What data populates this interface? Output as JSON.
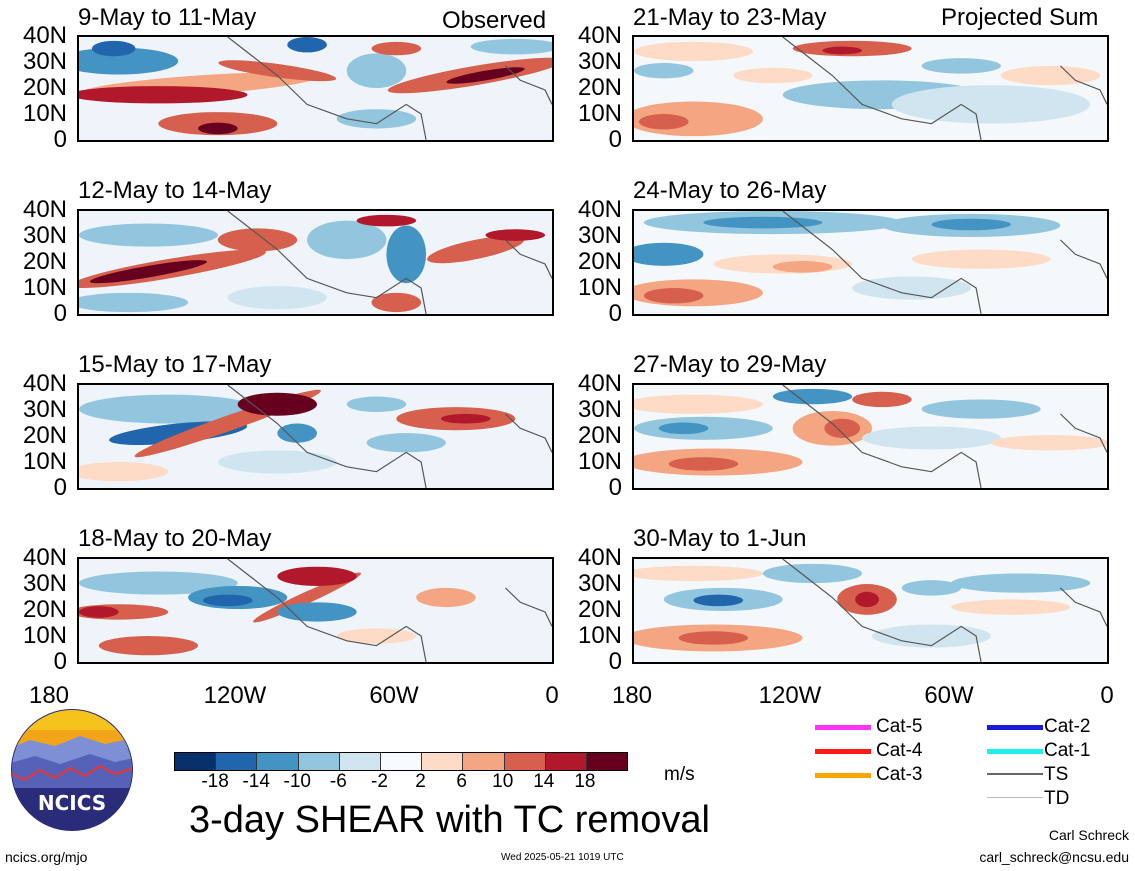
{
  "header": {
    "left_tag": "Observed",
    "right_tag": "Projected Sum"
  },
  "panels_left": [
    {
      "label": "9-May to 11-May"
    },
    {
      "label": "12-May to 14-May"
    },
    {
      "label": "15-May to 17-May"
    },
    {
      "label": "18-May to 20-May"
    }
  ],
  "panels_right": [
    {
      "label": "21-May to 23-May"
    },
    {
      "label": "24-May to 26-May"
    },
    {
      "label": "27-May to 29-May"
    },
    {
      "label": "30-May to 1-Jun"
    }
  ],
  "axes": {
    "y_ticks": [
      "40N",
      "30N",
      "20N",
      "10N",
      "0"
    ],
    "x_ticks": [
      "180",
      "120W",
      "60W",
      "0"
    ]
  },
  "colorbar": {
    "ticks": [
      "-18",
      "-14",
      "-10",
      "-6",
      "-2",
      "2",
      "6",
      "10",
      "14",
      "18"
    ],
    "colors": [
      "#08306b",
      "#2166ac",
      "#4393c3",
      "#92c5de",
      "#d1e5f0",
      "#f7fbff",
      "#fddbc7",
      "#f4a582",
      "#d6604d",
      "#b2182b",
      "#67001f"
    ],
    "unit": "m/s"
  },
  "title": "3-day SHEAR with TC removal",
  "legend": {
    "col1": [
      {
        "label": "Cat-5",
        "color": "#ff33ff"
      },
      {
        "label": "Cat-4",
        "color": "#ff1a1a"
      },
      {
        "label": "Cat-3",
        "color": "#ffa500"
      }
    ],
    "col2": [
      {
        "label": "Cat-2",
        "color": "#1a1adb"
      },
      {
        "label": "Cat-1",
        "color": "#22eeee"
      },
      {
        "label": "TS",
        "color": "#666666"
      },
      {
        "label": "TD",
        "color": "#bbbbbb"
      }
    ]
  },
  "logo": {
    "text": "NCICS"
  },
  "footer": {
    "site": "ncics.org/mjo",
    "timestamp": "Wed 2025-05-21 1019 UTC",
    "author": "Carl Schreck",
    "email": "carl_schreck@ncsu.edu"
  }
}
